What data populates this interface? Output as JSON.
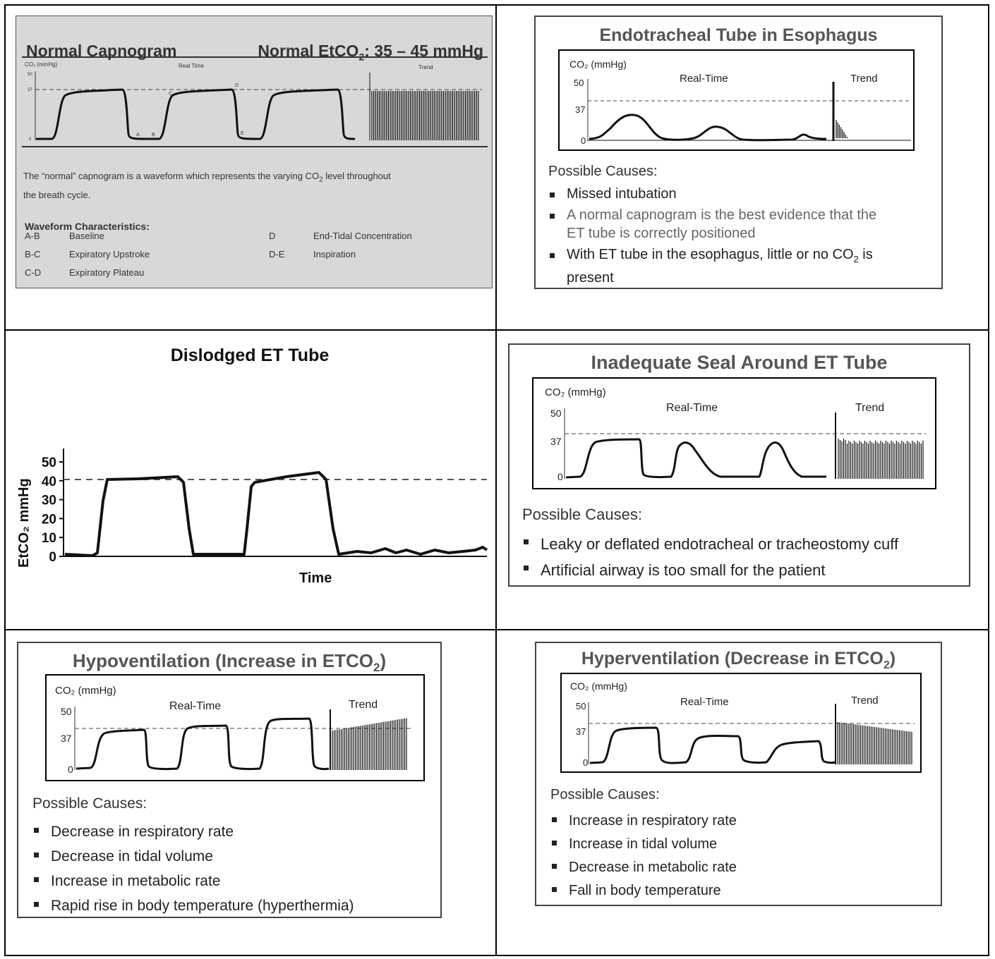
{
  "normal": {
    "title": "Normal Capnogram",
    "normal_range_prefix": "Normal EtCO",
    "normal_range_sub": "2",
    "normal_range_suffix": ": 35 – 45 mmHg",
    "y_label": "CO₂ (mmHg)",
    "real_time_label": "Real Time",
    "trend_label": "Trend",
    "ticks": [
      "50",
      "37",
      "0"
    ],
    "points": [
      "A",
      "B",
      "C",
      "D",
      "E"
    ],
    "desc_line1_a": "The “normal” capnogram is a waveform which represents the varying CO",
    "desc_line1_sub": "2",
    "desc_line1_b": " level throughout",
    "desc_line2": "the breath cycle.",
    "characteristics_heading": "Waveform Characteristics:",
    "characteristics": [
      {
        "code": "A-B",
        "label": "Baseline"
      },
      {
        "code": "B-C",
        "label": "Expiratory Upstroke"
      },
      {
        "code": "C-D",
        "label": "Expiratory Plateau"
      },
      {
        "code": "D",
        "label": "End-Tidal Concentration"
      },
      {
        "code": "D-E",
        "label": "Inspiration"
      }
    ]
  },
  "esophagus": {
    "title": "Endotracheal Tube in Esophagus",
    "y_label": "CO₂ (mmHg)",
    "real_time_label": "Real-Time",
    "trend_label": "Trend",
    "ticks": [
      "50",
      "37",
      "0"
    ],
    "causes_heading": "Possible Causes:",
    "cause1": "Missed intubation",
    "cause2a": "A normal capnogram is the best evidence that the",
    "cause2b": "ET tube is correctly positioned",
    "cause3a": "With ET tube in the esophagus, little or no CO",
    "cause3sub": "2",
    "cause3b": " is",
    "cause3c": "present"
  },
  "dislodged": {
    "title": "Dislodged ET Tube",
    "y_axis_label": "EtCO₂ mmHg",
    "x_axis_label": "Time",
    "y_ticks": [
      "50",
      "40",
      "30",
      "20",
      "10",
      "0"
    ]
  },
  "seal": {
    "title": "Inadequate Seal Around ET Tube",
    "y_label": "CO₂ (mmHg)",
    "real_time_label": "Real-Time",
    "trend_label": "Trend",
    "ticks": [
      "50",
      "37",
      "0"
    ],
    "causes_heading": "Possible Causes:",
    "causes": [
      "Leaky or deflated endotracheal or tracheostomy cuff",
      "Artificial airway is too small for the patient"
    ]
  },
  "hypo": {
    "title_a": "Hypoventilation (Increase in ETCO",
    "title_sub": "2",
    "title_b": ")",
    "y_label": "CO₂ (mmHg)",
    "real_time_label": "Real-Time",
    "trend_label": "Trend",
    "ticks": [
      "50",
      "37",
      "0"
    ],
    "causes_heading": "Possible Causes:",
    "causes": [
      "Decrease in respiratory rate",
      "Decrease in tidal volume",
      "Increase in metabolic rate",
      "Rapid rise in body temperature (hyperthermia)"
    ]
  },
  "hyper": {
    "title_a": "Hyperventilation (Decrease in ETCO",
    "title_sub": "2",
    "title_b": ")",
    "y_label": "CO₂ (mmHg)",
    "real_time_label": "Real-Time",
    "trend_label": "Trend",
    "ticks": [
      "50",
      "37",
      "0"
    ],
    "causes_heading": "Possible Causes:",
    "causes": [
      "Increase in respiratory rate",
      "Increase in tidal volume",
      "Decrease in metabolic rate",
      "Fall in body temperature"
    ]
  }
}
